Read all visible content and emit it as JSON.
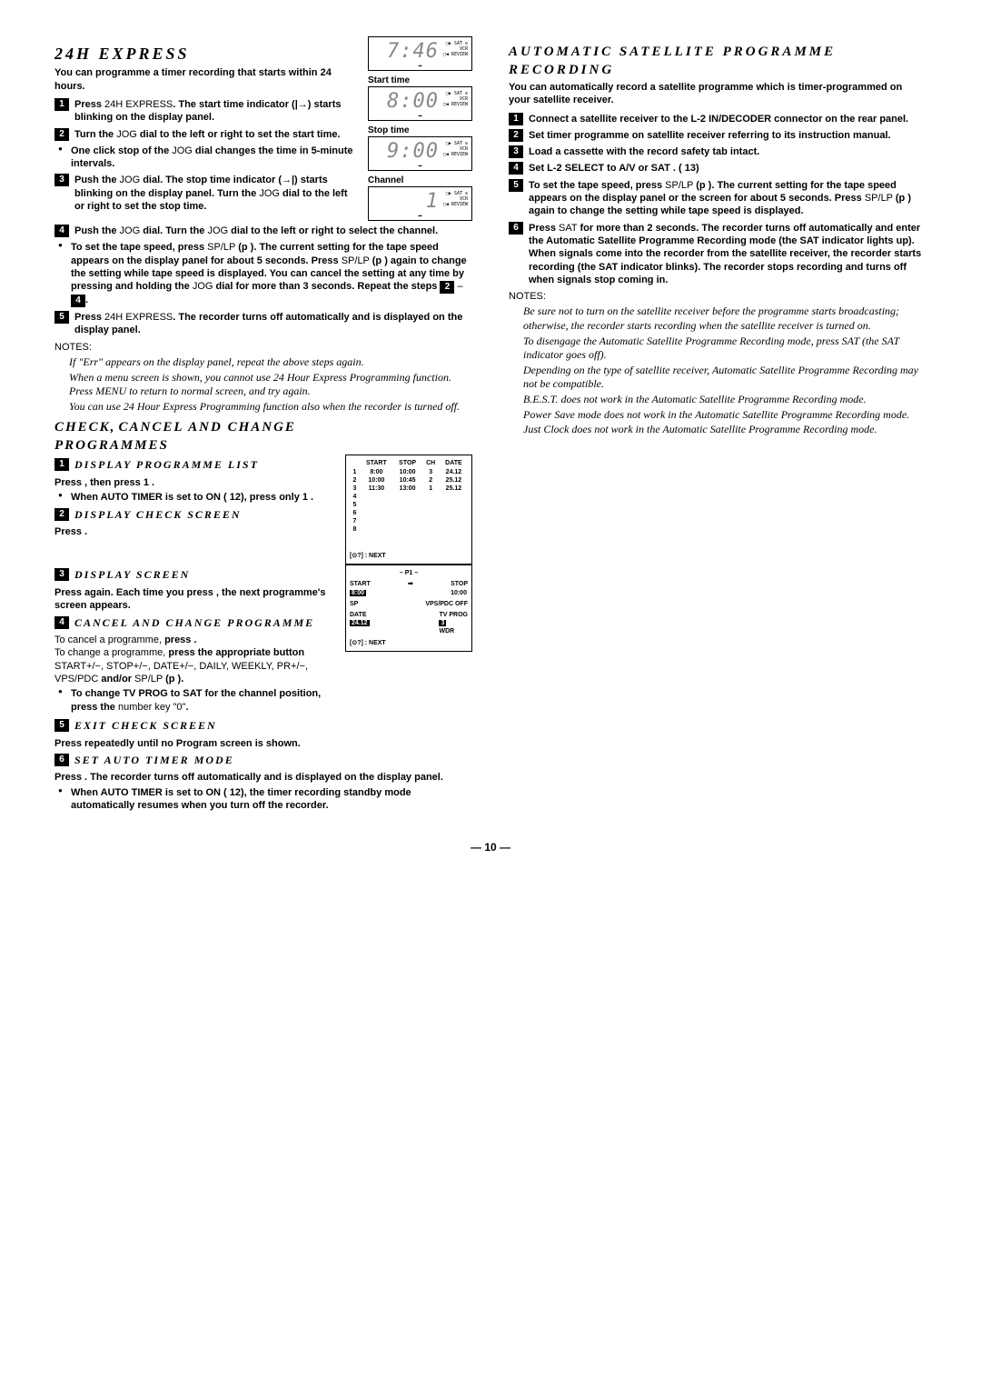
{
  "page_number": "— 10 —",
  "left": {
    "heading1": "24H EXPRESS",
    "intro1": "You can programme a timer recording that starts within 24 hours.",
    "steps1": [
      {
        "n": "1",
        "html": "<b>Press</b> 24H EXPRESS<b>. The start time indicator (|→) starts blinking on the display panel.</b>"
      },
      {
        "n": "2",
        "html": "<b>Turn the</b> JOG <b>dial to the left or right to set the start time.</b>"
      },
      {
        "n": "",
        "html": "<b>One click stop of the</b> JOG <b>dial changes the time in 5-minute intervals.</b>",
        "bullet": true
      },
      {
        "n": "3",
        "html": "<b>Push the</b> JOG <b>dial. The stop time indicator (→|) starts blinking on the display panel. Turn the</b> JOG <b>dial to the left or right to set the stop time.</b>"
      },
      {
        "n": "4",
        "html": "<b>Push the</b> JOG <b>dial. Turn the</b> JOG <b>dial to the left or right to select the channel.</b>"
      },
      {
        "n": "",
        "html": "<b>To set the tape speed, press</b> SP/LP <b>(p   ). The current setting for the tape speed appears on the display panel for about 5 seconds. Press</b> SP/LP <b>(p   ) again to change the setting while tape speed is displayed. You can cancel the setting at any time by pressing and holding the</b> JOG <b>dial for more than 3 seconds. Repeat the steps</b> <span class='step-num' style='position:static;display:inline-block;'>2</span> – <span class='step-num' style='position:static;display:inline-block;'>4</span><b>.</b>",
        "bullet": true
      },
      {
        "n": "5",
        "html": "<b>Press</b> 24H EXPRESS<b>. The recorder turns off automatically and   is displayed on the display panel.</b>"
      }
    ],
    "notes_label1": "NOTES:",
    "notes1": [
      "If \"Err\" appears on the display panel, repeat the above steps again.",
      "When a menu screen is shown, you cannot use 24 Hour Express Programming function. Press MENU to return to normal screen, and try again.",
      "You can use 24 Hour Express Programming function also when the recorder is turned off."
    ],
    "displays": [
      {
        "title": "",
        "seg": "7:46"
      },
      {
        "title": "Start time",
        "seg": "8:00"
      },
      {
        "title": "Stop time",
        "seg": "9:00"
      },
      {
        "title": "Channel",
        "seg": "1"
      }
    ],
    "heading2a": "CHECK,",
    "heading2b": "CANCEL AND CHANGE",
    "heading2c": "PROGRAMMES",
    "steps2": [
      {
        "n": "1",
        "title": "DISPLAY PROGRAMME LIST",
        "body": "<b>Press   , then press 1 .</b>",
        "bullet": "<b>When AUTO TIMER is set to ON (   12), press only 1 .</b>"
      },
      {
        "n": "2",
        "title": "DISPLAY CHECK SCREEN",
        "body": "<b>Press   .</b>"
      },
      {
        "n": "3",
        "title": "DISPLAY SCREEN",
        "body": "<b>Press   again. Each time you press   , the next programme's screen appears.</b>"
      },
      {
        "n": "4",
        "title": "CANCEL AND CHANGE PROGRAMME",
        "body": "To cancel a programme, <b>press   .</b><br>To change a programme, <b>press the appropriate button</b> START+/−, STOP+/−, DATE+/−, DAILY, WEEKLY, PR+/−, VPS/PDC <b>and/or</b> SP/LP <b>(p   ).</b>",
        "bullet": "<b>To change TV PROG to SAT for the channel position, press the</b> number key \"0\"<b>.</b>"
      },
      {
        "n": "5",
        "title": "EXIT CHECK SCREEN",
        "body": "<b>Press   repeatedly until no Program screen is shown.</b>"
      },
      {
        "n": "6",
        "title": "SET AUTO TIMER MODE",
        "body": "<b>Press   . The recorder turns off automatically and   is displayed on the display panel.</b>",
        "bullet": "<b>When AUTO TIMER is set to ON (   12), the timer recording standby mode automatically resumes when you turn off the recorder.</b>"
      }
    ],
    "progTable": {
      "header": [
        "",
        "START",
        "STOP",
        "CH",
        "DATE"
      ],
      "rows": [
        [
          "1",
          "8:00",
          "10:00",
          "3",
          "24.12"
        ],
        [
          "2",
          "10:00",
          "10:45",
          "2",
          "25.12"
        ],
        [
          "3",
          "11:30",
          "13:00",
          "1",
          "25.12"
        ],
        [
          "4",
          "",
          "",
          "",
          ""
        ],
        [
          "5",
          "",
          "",
          "",
          ""
        ],
        [
          "6",
          "",
          "",
          "",
          ""
        ],
        [
          "7",
          "",
          "",
          "",
          ""
        ],
        [
          "8",
          "",
          "",
          "",
          ""
        ]
      ],
      "footer": "[⊙?] : NEXT"
    },
    "progScreen2": {
      "title": "– P1 –",
      "start_lbl": "START",
      "start": "8:00",
      "stop_lbl": "STOP",
      "stop": "10:00",
      "sp": "SP",
      "vps": "VPS/PDC OFF",
      "date_lbl": "DATE",
      "date": "24.12",
      "tv_lbl": "TV PROG",
      "tv": "3",
      "tv2": "WDR",
      "footer": "[⊙?] : NEXT"
    }
  },
  "right": {
    "heading": "AUTOMATIC SATELLITE PROGRAMME RECORDING",
    "intro": "You can automatically record a satellite programme which is timer-programmed on your satellite receiver.",
    "steps": [
      {
        "n": "1",
        "html": "<b>Connect a satellite receiver to the L-2 IN/DECODER connector on the rear panel.</b>"
      },
      {
        "n": "2",
        "html": "<b>Set timer programme on satellite receiver referring to its instruction manual.</b>"
      },
      {
        "n": "3",
        "html": "<b>Load a cassette with the record safety tab intact.</b>"
      },
      {
        "n": "4",
        "html": "<b>Set L-2 SELECT to A/V or SAT . (   13)</b>"
      },
      {
        "n": "5",
        "html": "<b>To set the tape speed, press</b> SP/LP <b>(p   ). The current setting for the tape speed appears on the display panel or the screen for about 5 seconds. Press</b> SP/LP <b>(p   ) again to change the setting while tape speed is displayed.</b>"
      },
      {
        "n": "6",
        "html": "<b>Press</b> SAT  <b>for more than 2 seconds. The recorder turns off automatically and enter the Automatic Satellite Programme Recording mode (the SAT   indicator lights up). When signals come into the recorder from the satellite receiver, the recorder starts recording (the SAT   indicator blinks). The recorder stops recording and turns off when signals stop coming in.</b>"
      }
    ],
    "notes_label": "NOTES:",
    "notes": [
      "Be sure not to turn on the satellite receiver before the programme starts broadcasting; otherwise, the recorder starts recording when the satellite receiver is turned on.",
      "To disengage the Automatic Satellite Programme Recording mode, press SAT  (the SAT  indicator goes off).",
      "Depending on the type of satellite receiver, Automatic Satellite Programme Recording may not be compatible.",
      "B.E.S.T. does not work in the Automatic Satellite Programme Recording mode.",
      "Power Save mode does not work in the Automatic Satellite Programme Recording mode.",
      "Just Clock does not work in the Automatic Satellite Programme Recording mode."
    ]
  }
}
